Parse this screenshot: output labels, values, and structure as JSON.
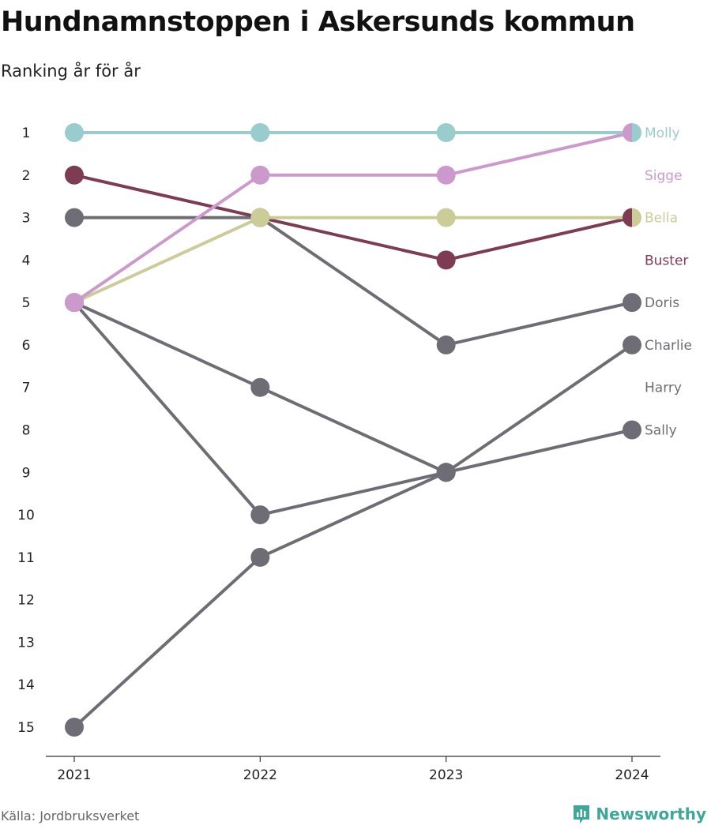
{
  "header": {
    "title": "Hundnamnstoppen i Askersunds kommun",
    "subtitle": "Ranking år för år"
  },
  "footer": {
    "source": "Källa: Jordbruksverket",
    "brand": "Newsworthy"
  },
  "icons": {
    "brand_logo": "newsworthy-logo-icon"
  },
  "chart_data": {
    "type": "line",
    "title": "Hundnamnstoppen i Askersunds kommun",
    "subtitle": "Ranking år för år",
    "x": [
      "2021",
      "2022",
      "2023",
      "2024"
    ],
    "y_ticks": [
      1,
      2,
      3,
      4,
      5,
      6,
      7,
      8,
      9,
      10,
      11,
      12,
      13,
      14,
      15
    ],
    "ylim": [
      1,
      15
    ],
    "y_reversed": true,
    "grid": false,
    "legend": "end-labels-right",
    "series": [
      {
        "name": "Charlie",
        "values": [
          15,
          11,
          9,
          6
        ],
        "color": "#6e6d75"
      },
      {
        "name": "Sally",
        "values": [
          5,
          10,
          9,
          8
        ],
        "color": "#6e6d75"
      },
      {
        "name": "Harry",
        "values": [
          5,
          7,
          9,
          null
        ],
        "color": "#6e6d75"
      },
      {
        "name": "Doris",
        "values": [
          3,
          3,
          6,
          5
        ],
        "color": "#6e6d75"
      },
      {
        "name": "Buster",
        "values": [
          2,
          3,
          4,
          3
        ],
        "color": "#7d3c52"
      },
      {
        "name": "Bella",
        "values": [
          5,
          3,
          3,
          3
        ],
        "color": "#cccc99"
      },
      {
        "name": "Sigge",
        "values": [
          5,
          2,
          2,
          1
        ],
        "color": "#cc99cc"
      },
      {
        "name": "Molly",
        "values": [
          1,
          1,
          1,
          1
        ],
        "color": "#99cccc"
      }
    ],
    "end_labels": [
      {
        "name": "Molly",
        "rank": 1,
        "color": "#99cccc"
      },
      {
        "name": "Sigge",
        "rank": 2,
        "color": "#cc99cc"
      },
      {
        "name": "Bella",
        "rank": 3,
        "color": "#cccc99"
      },
      {
        "name": "Buster",
        "rank": 4,
        "color": "#7d3c52"
      },
      {
        "name": "Doris",
        "rank": 5,
        "color": "#6e6d75"
      },
      {
        "name": "Charlie",
        "rank": 6,
        "color": "#6e6d75"
      },
      {
        "name": "Harry",
        "rank": 7,
        "color": "#6e6d75"
      },
      {
        "name": "Sally",
        "rank": 8,
        "color": "#6e6d75"
      }
    ]
  }
}
